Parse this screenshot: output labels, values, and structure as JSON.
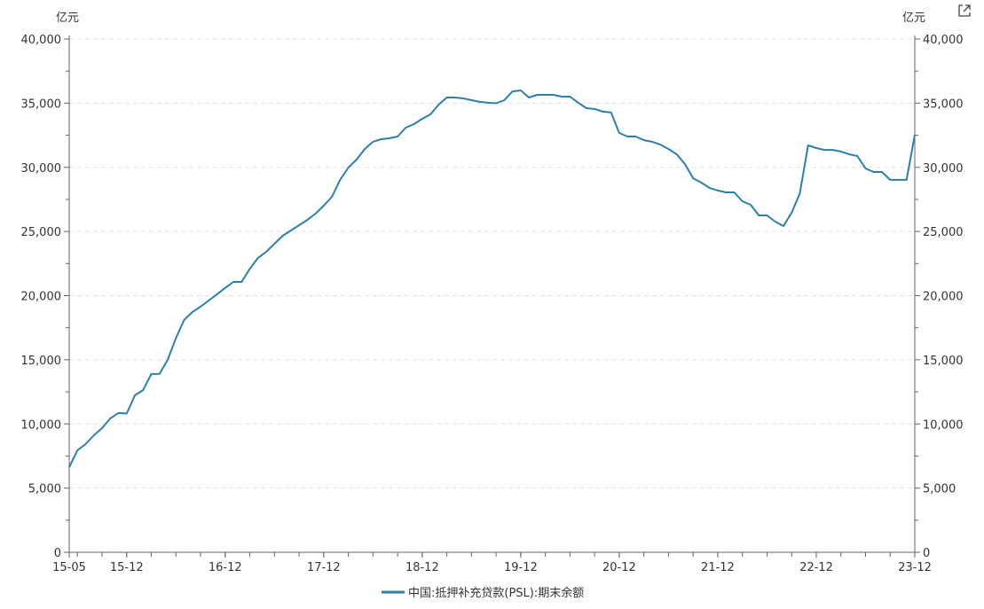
{
  "chart_data": {
    "type": "line",
    "title": "",
    "ylabel_left": "亿元",
    "ylabel_right": "亿元",
    "ylim": [
      0,
      40000
    ],
    "yticks": [
      "0",
      "5,000",
      "10,000",
      "15,000",
      "20,000",
      "25,000",
      "30,000",
      "35,000",
      "40,000"
    ],
    "ytick_values": [
      0,
      5000,
      10000,
      15000,
      20000,
      25000,
      30000,
      35000,
      40000
    ],
    "x_start": "2015-05",
    "x_end": "2023-12",
    "xtick_labels": [
      "15-05",
      "15-12",
      "16-12",
      "17-12",
      "18-12",
      "19-12",
      "20-12",
      "21-12",
      "22-12",
      "23-12"
    ],
    "xtick_months": [
      "2015-05",
      "2015-12",
      "2016-12",
      "2017-12",
      "2018-12",
      "2019-12",
      "2020-12",
      "2021-12",
      "2022-12",
      "2023-12"
    ],
    "grid": "horizontal dashed",
    "legend_position": "bottom",
    "series": [
      {
        "name": "中国:抵押补充贷款(PSL):期末余额",
        "color": "#2e7fa8",
        "values": [
          6630,
          7950,
          8430,
          9120,
          9670,
          10430,
          10850,
          10810,
          12230,
          12640,
          13890,
          13900,
          15000,
          16700,
          18100,
          18720,
          19140,
          19620,
          20100,
          20600,
          21070,
          21070,
          22100,
          22940,
          23420,
          24040,
          24660,
          25080,
          25490,
          25900,
          26390,
          27010,
          27700,
          29020,
          29980,
          30600,
          31430,
          31990,
          32190,
          32260,
          32400,
          33090,
          33370,
          33780,
          34130,
          34890,
          35440,
          35440,
          35370,
          35230,
          35100,
          35030,
          34990,
          35230,
          35920,
          35990,
          35440,
          35650,
          35650,
          35650,
          35510,
          35510,
          35030,
          34610,
          34540,
          34340,
          34270,
          32680,
          32400,
          32400,
          32120,
          31990,
          31780,
          31430,
          31020,
          30260,
          29150,
          28810,
          28390,
          28190,
          28050,
          28050,
          27360,
          27080,
          26250,
          26250,
          25770,
          25420,
          26460,
          27980,
          31710,
          31500,
          31360,
          31360,
          31230,
          31020,
          30880,
          29910,
          29640,
          29640,
          29020,
          29020,
          29020,
          32540
        ]
      }
    ]
  },
  "toolbar": {
    "expand_icon": "external-link-icon"
  }
}
